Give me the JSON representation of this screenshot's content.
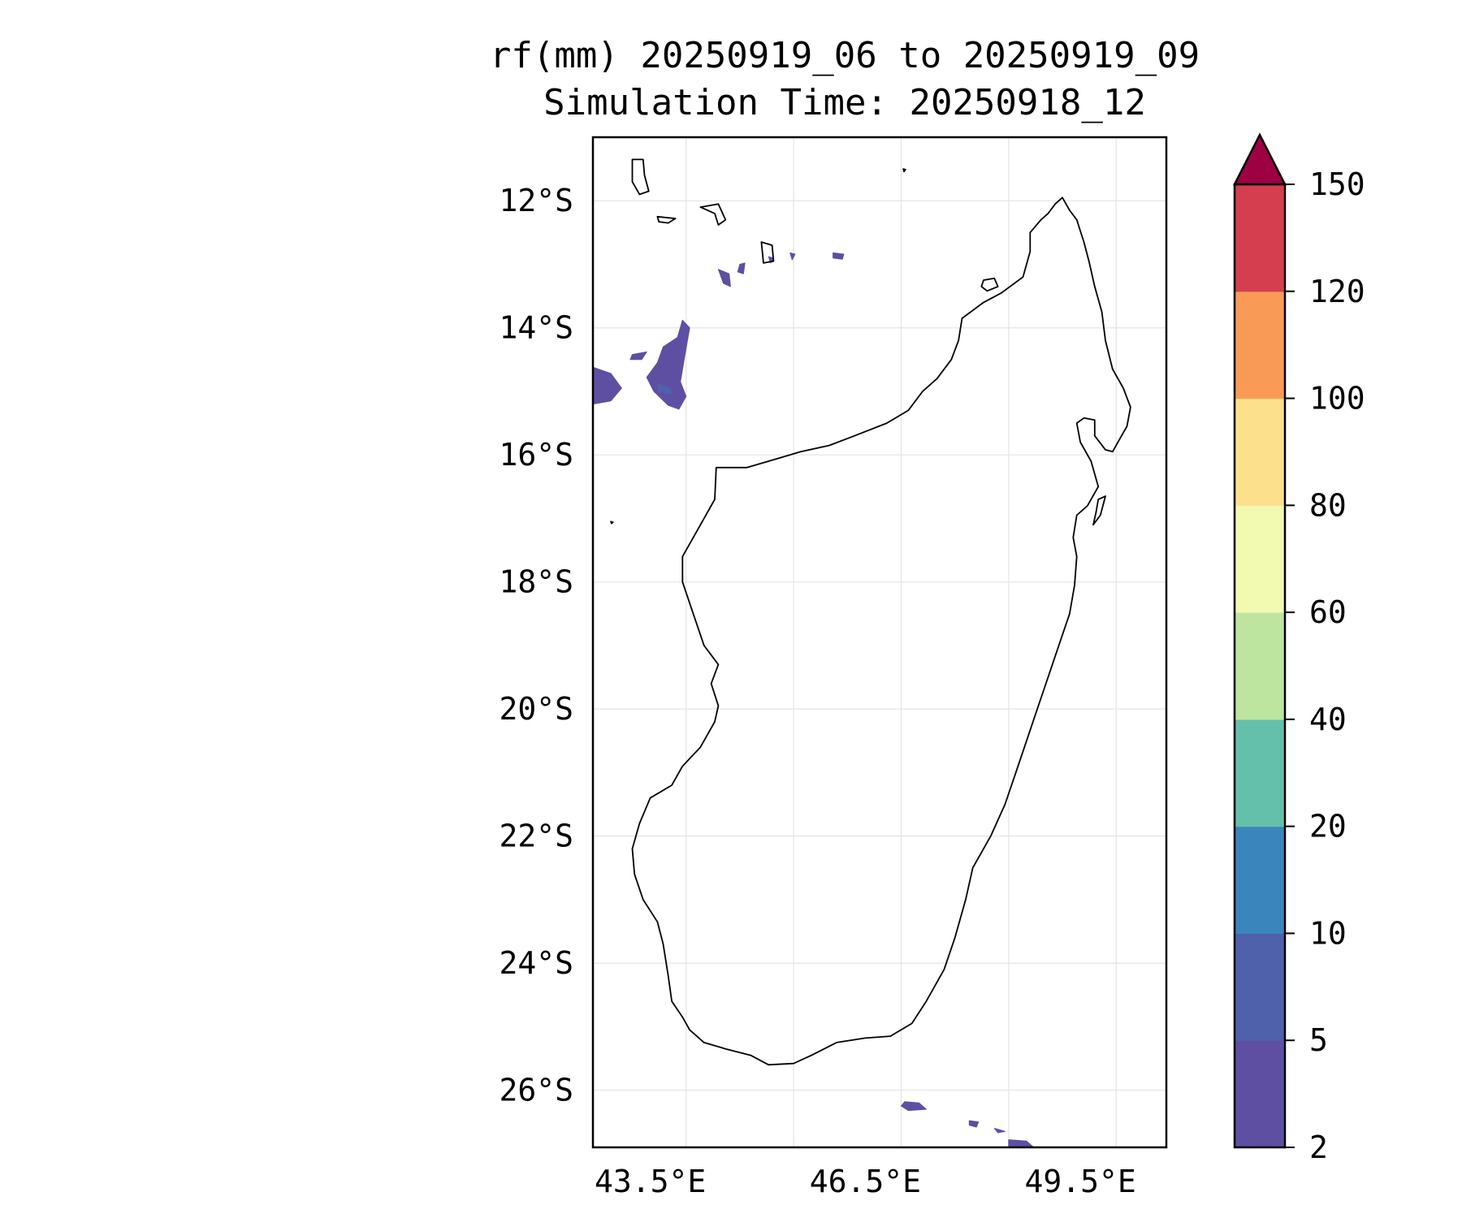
{
  "title": {
    "line1": "rf(mm) 20250919_06 to 20250919_09",
    "line2": "Simulation Time: 20250918_12"
  },
  "map": {
    "lon_range": [
      42.7,
      50.7
    ],
    "lat_range": [
      -26.9,
      -11.0
    ],
    "lat_ticks": [
      {
        "value": -12,
        "label": "12°S"
      },
      {
        "value": -14,
        "label": "14°S"
      },
      {
        "value": -16,
        "label": "16°S"
      },
      {
        "value": -18,
        "label": "18°S"
      },
      {
        "value": -20,
        "label": "20°S"
      },
      {
        "value": -22,
        "label": "22°S"
      },
      {
        "value": -24,
        "label": "24°S"
      },
      {
        "value": -26,
        "label": "26°S"
      }
    ],
    "lon_ticks": [
      {
        "value": 43.5,
        "label": "43.5°E"
      },
      {
        "value": 46.5,
        "label": "46.5°E"
      },
      {
        "value": 49.5,
        "label": "49.5°E"
      }
    ],
    "gridlines": true
  },
  "colorbar": {
    "levels": [
      "2",
      "5",
      "10",
      "20",
      "40",
      "60",
      "80",
      "100",
      "120",
      "150"
    ],
    "colors": [
      "#5e4fa2",
      "#4f61aa",
      "#3a86bc",
      "#64c0aa",
      "#bde5a0",
      "#f2f9b0",
      "#fce08b",
      "#f99b57",
      "#d53e4f"
    ],
    "extend_color": "#9e0142"
  },
  "rain_areas": [
    {
      "name": "mozambique-channel-west",
      "category": 0,
      "points": [
        [
          42.7,
          -14.62
        ],
        [
          42.95,
          -14.72
        ],
        [
          43.1,
          -14.95
        ],
        [
          42.95,
          -15.15
        ],
        [
          42.7,
          -15.2
        ]
      ]
    },
    {
      "name": "mayotte-band",
      "category": 0,
      "points": [
        [
          43.95,
          -13.88
        ],
        [
          44.05,
          -14.0
        ],
        [
          43.98,
          -14.45
        ],
        [
          43.92,
          -14.85
        ],
        [
          44.0,
          -15.08
        ],
        [
          43.9,
          -15.28
        ],
        [
          43.75,
          -15.22
        ],
        [
          43.55,
          -15.0
        ],
        [
          43.45,
          -14.78
        ],
        [
          43.6,
          -14.55
        ],
        [
          43.68,
          -14.3
        ],
        [
          43.88,
          -14.15
        ]
      ]
    },
    {
      "name": "small-cell-14-4",
      "category": 0,
      "points": [
        [
          43.25,
          -14.42
        ],
        [
          43.45,
          -14.38
        ],
        [
          43.38,
          -14.5
        ],
        [
          43.22,
          -14.5
        ]
      ]
    },
    {
      "name": "heavier-core",
      "category": 1,
      "points": [
        [
          43.6,
          -14.88
        ],
        [
          43.78,
          -14.95
        ],
        [
          43.8,
          -15.05
        ],
        [
          43.62,
          -15.0
        ]
      ]
    },
    {
      "name": "cell-13-1",
      "category": 0,
      "points": [
        [
          44.45,
          -13.08
        ],
        [
          44.6,
          -13.15
        ],
        [
          44.62,
          -13.35
        ],
        [
          44.52,
          -13.3
        ]
      ]
    },
    {
      "name": "cell-13-0",
      "category": 0,
      "points": [
        [
          44.75,
          -13.0
        ],
        [
          44.82,
          -12.98
        ],
        [
          44.8,
          -13.15
        ],
        [
          44.72,
          -13.12
        ]
      ]
    },
    {
      "name": "cell-12-9",
      "category": 0,
      "points": [
        [
          45.15,
          -12.88
        ],
        [
          45.22,
          -12.9
        ],
        [
          45.18,
          -12.98
        ]
      ]
    },
    {
      "name": "cell-12-8a",
      "category": 0,
      "points": [
        [
          45.45,
          -12.82
        ],
        [
          45.52,
          -12.84
        ],
        [
          45.48,
          -12.93
        ]
      ]
    },
    {
      "name": "cell-12-8b",
      "category": 0,
      "points": [
        [
          46.05,
          -12.82
        ],
        [
          46.2,
          -12.84
        ],
        [
          46.18,
          -12.92
        ],
        [
          46.05,
          -12.9
        ]
      ]
    },
    {
      "name": "south-cell-a",
      "category": 0,
      "points": [
        [
          47.05,
          -26.18
        ],
        [
          47.25,
          -26.2
        ],
        [
          47.35,
          -26.3
        ],
        [
          47.1,
          -26.32
        ],
        [
          47.0,
          -26.25
        ]
      ]
    },
    {
      "name": "south-cell-b",
      "category": 0,
      "points": [
        [
          47.95,
          -26.48
        ],
        [
          48.08,
          -26.5
        ],
        [
          48.05,
          -26.58
        ],
        [
          47.95,
          -26.55
        ]
      ]
    },
    {
      "name": "south-cell-c",
      "category": 0,
      "points": [
        [
          48.3,
          -26.6
        ],
        [
          48.45,
          -26.65
        ],
        [
          48.35,
          -26.67
        ]
      ]
    },
    {
      "name": "south-cell-d",
      "category": 0,
      "points": [
        [
          48.5,
          -26.78
        ],
        [
          48.75,
          -26.8
        ],
        [
          48.85,
          -26.9
        ],
        [
          48.5,
          -26.9
        ]
      ]
    }
  ],
  "coastlines": [
    {
      "name": "madagascar-coastline",
      "points": [
        [
          49.25,
          -11.95
        ],
        [
          49.35,
          -12.15
        ],
        [
          49.45,
          -12.3
        ],
        [
          49.55,
          -12.65
        ],
        [
          49.62,
          -12.95
        ],
        [
          49.7,
          -13.35
        ],
        [
          49.8,
          -13.75
        ],
        [
          49.85,
          -14.2
        ],
        [
          49.95,
          -14.65
        ],
        [
          50.1,
          -14.95
        ],
        [
          50.2,
          -15.25
        ],
        [
          50.15,
          -15.55
        ],
        [
          50.05,
          -15.75
        ],
        [
          49.95,
          -15.95
        ],
        [
          49.85,
          -15.92
        ],
        [
          49.7,
          -15.7
        ],
        [
          49.7,
          -15.45
        ],
        [
          49.55,
          -15.42
        ],
        [
          49.45,
          -15.5
        ],
        [
          49.5,
          -15.8
        ],
        [
          49.65,
          -16.1
        ],
        [
          49.75,
          -16.5
        ],
        [
          49.6,
          -16.8
        ],
        [
          49.45,
          -16.95
        ],
        [
          49.4,
          -17.3
        ],
        [
          49.45,
          -17.6
        ],
        [
          49.42,
          -18.05
        ],
        [
          49.35,
          -18.5
        ],
        [
          49.2,
          -19.0
        ],
        [
          49.05,
          -19.5
        ],
        [
          48.9,
          -20.0
        ],
        [
          48.75,
          -20.5
        ],
        [
          48.6,
          -21.0
        ],
        [
          48.45,
          -21.5
        ],
        [
          48.25,
          -22.0
        ],
        [
          48.0,
          -22.5
        ],
        [
          47.9,
          -23.0
        ],
        [
          47.75,
          -23.6
        ],
        [
          47.6,
          -24.1
        ],
        [
          47.35,
          -24.6
        ],
        [
          47.15,
          -24.95
        ],
        [
          46.85,
          -25.15
        ],
        [
          46.5,
          -25.18
        ],
        [
          46.1,
          -25.25
        ],
        [
          45.75,
          -25.45
        ],
        [
          45.5,
          -25.58
        ],
        [
          45.15,
          -25.6
        ],
        [
          44.9,
          -25.45
        ],
        [
          44.55,
          -25.35
        ],
        [
          44.25,
          -25.25
        ],
        [
          44.05,
          -25.05
        ],
        [
          43.95,
          -24.85
        ],
        [
          43.8,
          -24.6
        ],
        [
          43.75,
          -24.2
        ],
        [
          43.68,
          -23.7
        ],
        [
          43.6,
          -23.35
        ],
        [
          43.4,
          -23.0
        ],
        [
          43.28,
          -22.6
        ],
        [
          43.25,
          -22.2
        ],
        [
          43.35,
          -21.8
        ],
        [
          43.5,
          -21.4
        ],
        [
          43.8,
          -21.2
        ],
        [
          43.95,
          -20.9
        ],
        [
          44.2,
          -20.6
        ],
        [
          44.4,
          -20.2
        ],
        [
          44.45,
          -19.95
        ],
        [
          44.35,
          -19.6
        ],
        [
          44.45,
          -19.3
        ],
        [
          44.25,
          -19.0
        ],
        [
          44.1,
          -18.5
        ],
        [
          43.95,
          -18.0
        ],
        [
          43.95,
          -17.6
        ],
        [
          44.15,
          -17.2
        ],
        [
          44.4,
          -16.7
        ],
        [
          44.42,
          -16.2
        ],
        [
          44.85,
          -16.2
        ],
        [
          45.3,
          -16.05
        ],
        [
          45.6,
          -15.95
        ],
        [
          46.0,
          -15.85
        ],
        [
          46.35,
          -15.7
        ],
        [
          46.8,
          -15.5
        ],
        [
          47.1,
          -15.3
        ],
        [
          47.3,
          -15.0
        ],
        [
          47.5,
          -14.8
        ],
        [
          47.7,
          -14.5
        ],
        [
          47.8,
          -14.2
        ],
        [
          47.85,
          -13.85
        ],
        [
          48.15,
          -13.6
        ],
        [
          48.4,
          -13.45
        ],
        [
          48.7,
          -13.2
        ],
        [
          48.8,
          -12.8
        ],
        [
          48.8,
          -12.5
        ],
        [
          48.95,
          -12.3
        ],
        [
          49.05,
          -12.2
        ],
        [
          49.15,
          -12.05
        ],
        [
          49.25,
          -11.95
        ]
      ]
    },
    {
      "name": "nosy-be",
      "points": [
        [
          48.15,
          -13.25
        ],
        [
          48.3,
          -13.22
        ],
        [
          48.35,
          -13.35
        ],
        [
          48.2,
          -13.42
        ],
        [
          48.12,
          -13.35
        ]
      ]
    },
    {
      "name": "sainte-marie-island",
      "points": [
        [
          49.75,
          -16.7
        ],
        [
          49.85,
          -16.65
        ],
        [
          49.78,
          -16.95
        ],
        [
          49.68,
          -17.1
        ],
        [
          49.72,
          -16.9
        ]
      ]
    },
    {
      "name": "grande-comore",
      "points": [
        [
          43.25,
          -11.35
        ],
        [
          43.4,
          -11.35
        ],
        [
          43.42,
          -11.6
        ],
        [
          43.48,
          -11.85
        ],
        [
          43.35,
          -11.9
        ],
        [
          43.25,
          -11.7
        ]
      ]
    },
    {
      "name": "moheli",
      "points": [
        [
          43.6,
          -12.25
        ],
        [
          43.85,
          -12.28
        ],
        [
          43.75,
          -12.35
        ],
        [
          43.62,
          -12.33
        ]
      ]
    },
    {
      "name": "anjouan",
      "points": [
        [
          44.2,
          -12.1
        ],
        [
          44.45,
          -12.05
        ],
        [
          44.55,
          -12.3
        ],
        [
          44.45,
          -12.38
        ],
        [
          44.4,
          -12.2
        ]
      ]
    },
    {
      "name": "mayotte",
      "points": [
        [
          45.05,
          -12.65
        ],
        [
          45.2,
          -12.7
        ],
        [
          45.22,
          -12.95
        ],
        [
          45.08,
          -12.98
        ]
      ]
    },
    {
      "name": "islet-north",
      "points": [
        [
          47.03,
          -11.5
        ],
        [
          47.06,
          -11.51
        ],
        [
          47.04,
          -11.54
        ]
      ]
    },
    {
      "name": "islet-west",
      "points": [
        [
          42.95,
          -17.05
        ],
        [
          42.98,
          -17.06
        ],
        [
          42.96,
          -17.08
        ]
      ]
    }
  ]
}
